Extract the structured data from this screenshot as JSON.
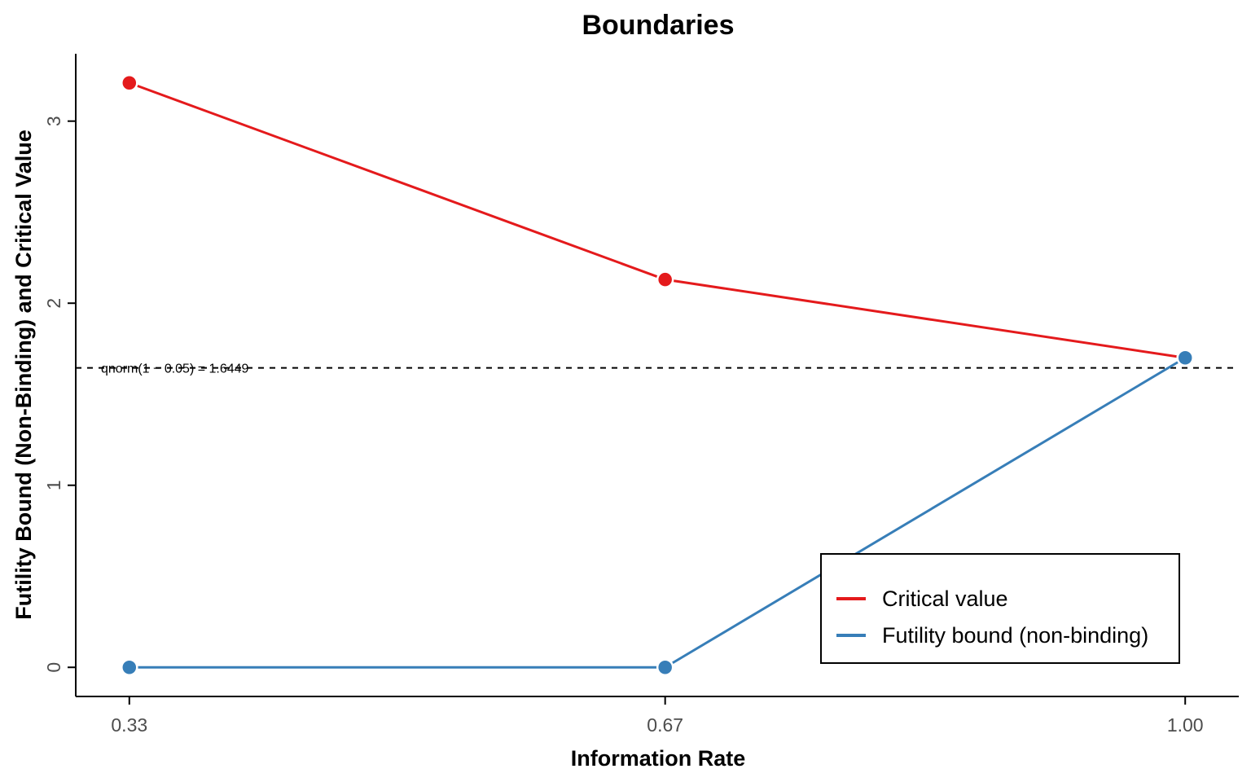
{
  "chart_data": {
    "type": "line",
    "title": "Boundaries",
    "xlabel": "Information Rate",
    "ylabel": "Futility Bound (Non-Binding) and Critical Value",
    "x": [
      0.33,
      0.67,
      1.0
    ],
    "x_tick_labels": [
      "0.33",
      "0.67",
      "1.00"
    ],
    "y_ticks": [
      0,
      1,
      2,
      3
    ],
    "y_tick_labels": [
      "0",
      "1",
      "2",
      "3"
    ],
    "ylim": [
      -0.16,
      3.37
    ],
    "xlim": [
      0.296,
      1.034
    ],
    "grid": false,
    "legend_position": "bottom-right",
    "series": [
      {
        "name": "Critical value",
        "color": "#E41A1C",
        "values": [
          3.21,
          2.13,
          1.7
        ]
      },
      {
        "name": "Futility bound (non-binding)",
        "color": "#377EB8",
        "values": [
          0.0,
          0.0,
          1.7
        ]
      }
    ],
    "reference_line": {
      "y": 1.6449,
      "style": "dashed",
      "label": "qnorm(1 − 0.05) = 1.6449"
    }
  }
}
